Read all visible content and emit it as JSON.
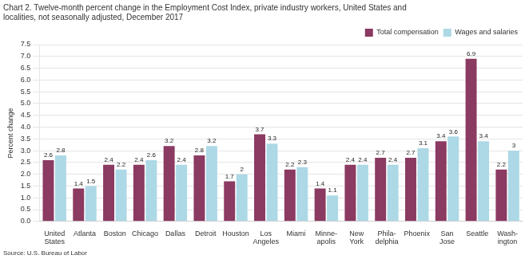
{
  "chart_data": {
    "type": "bar",
    "title": [
      "Chart 2. Twelve-month percent change in the Employment Cost Index, private industry workers, United States and",
      "localities, not seasonally adjusted, December 2017"
    ],
    "ylabel": "Percent change",
    "source": "Source: U.S. Bureau of Labor",
    "categories": [
      "United\nStates",
      "Atlanta",
      "Boston",
      "Chicago",
      "Dallas",
      "Detroit",
      "Houston",
      "Los\nAngeles",
      "Miami",
      "Minne-\napolis",
      "New\nYork",
      "Phila-\ndelphia",
      "Phoenix",
      "San\nJose",
      "Seattle",
      "Wash-\nington"
    ],
    "series": [
      {
        "name": "Total compensation",
        "color": "#8B3A62",
        "values": [
          2.6,
          1.4,
          2.4,
          2.4,
          3.2,
          2.8,
          1.7,
          3.7,
          2.2,
          1.4,
          2.4,
          2.7,
          2.7,
          3.4,
          6.9,
          2.2
        ]
      },
      {
        "name": "Wages and salaries",
        "color": "#ADD8E6",
        "values": [
          2.8,
          1.5,
          2.2,
          2.6,
          2.4,
          3.2,
          2.0,
          3.3,
          2.3,
          1.1,
          2.4,
          2.4,
          3.1,
          3.6,
          3.4,
          3.0
        ]
      }
    ],
    "ylim": [
      0.0,
      7.5
    ],
    "yticks": [
      {
        "value": 0,
        "label": "0.0"
      },
      0.5,
      {
        "value": 1,
        "label": "1.0"
      },
      1.5,
      {
        "value": 2,
        "label": "2.0"
      },
      2.5,
      {
        "value": 3,
        "label": "3.0"
      },
      3.5,
      {
        "value": 4,
        "label": "4.0"
      },
      4.5,
      {
        "value": 5,
        "label": "5.0"
      },
      5.5,
      {
        "value": 6,
        "label": "6.0"
      },
      6.5,
      {
        "value": 7,
        "label": "7.0"
      },
      7.5
    ],
    "grid": true,
    "legend": "upper right",
    "data_labels": true
  }
}
